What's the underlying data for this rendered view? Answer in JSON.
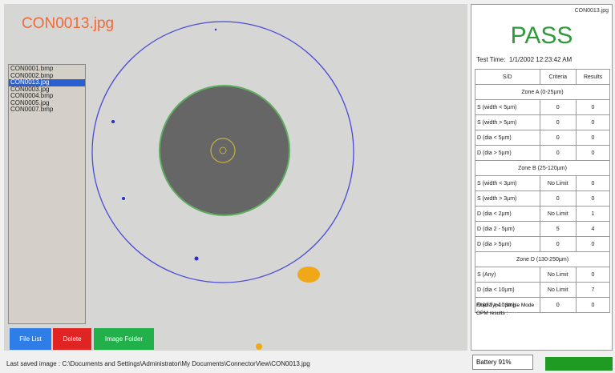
{
  "image_view": {
    "title": "CON0013.jpg"
  },
  "file_list": {
    "items": [
      "CON0001.bmp",
      "CON0002.bmp",
      "CON0013.jpg",
      "CON0003.jpg",
      "CON0004.bmp",
      "CON0005.jpg",
      "CON0007.bmp"
    ],
    "selected": 2
  },
  "buttons": [
    "File List",
    "Delete",
    "Image Folder"
  ],
  "status": {
    "label": "Last saved image :",
    "path": "C:\\Documents and Settings\\Administrator\\My Documents\\ConnectorView\\CON0013.jpg",
    "battery": "Battery 91%"
  },
  "result": {
    "file": "CON0013.jpg",
    "verdict": "PASS",
    "time_label": "Test Time:",
    "time": "1/1/2002 12:23:42 AM",
    "fiber_type": "Fiber Type : Single Mode",
    "opm": "OPM results :"
  },
  "table": {
    "header": [
      "S/D",
      "Criteria",
      "Results"
    ],
    "zones": [
      {
        "title": "Zone A (0-25µm)",
        "rows": [
          [
            "S (width < 5µm)",
            0,
            0
          ],
          [
            "S (width > 5µm)",
            0,
            0
          ],
          [
            "D (dia < 5µm)",
            0,
            0
          ],
          [
            "D (dia > 5µm)",
            0,
            0
          ]
        ]
      },
      {
        "title": "Zone B (25-120µm)",
        "rows": [
          [
            "S (width < 3µm)",
            "No Limit",
            0
          ],
          [
            "S (width > 3µm)",
            0,
            0
          ],
          [
            "D (dia < 2µm)",
            "No Limit",
            1
          ],
          [
            "D (dia 2 - 5µm)",
            5,
            4
          ],
          [
            "D (dia > 5µm)",
            0,
            0
          ]
        ]
      },
      {
        "title": "Zone D (130-250µm)",
        "rows": [
          [
            "S (Any)",
            "No Limit",
            0
          ],
          [
            "D (dia < 10µm)",
            "No Limit",
            7
          ],
          [
            "D (dia > 10µm)",
            0,
            0
          ]
        ]
      }
    ]
  }
}
